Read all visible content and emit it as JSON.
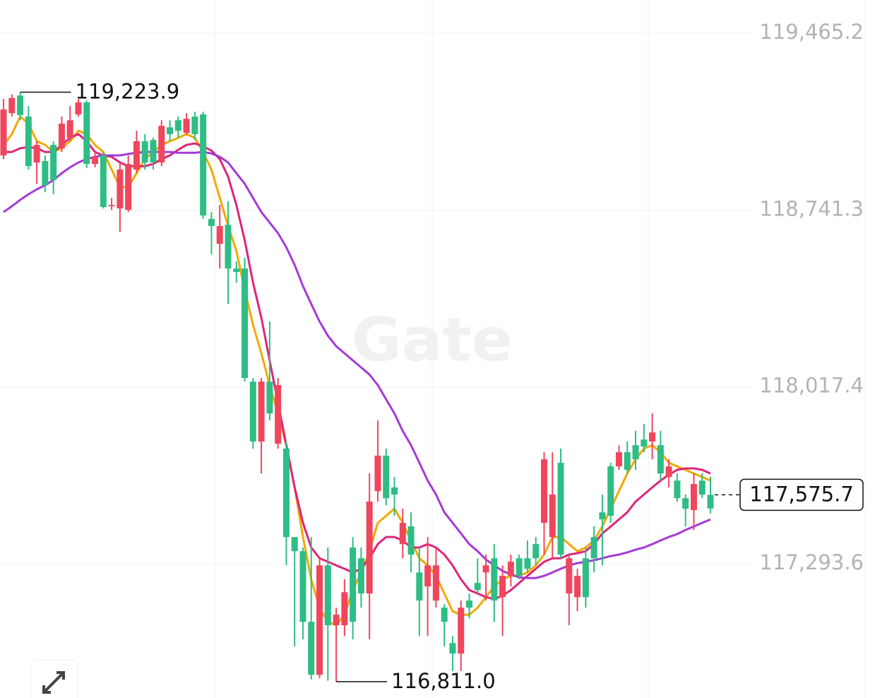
{
  "chart_data": {
    "type": "candlestick",
    "watermark": "Gate",
    "ylim": [
      116744.1,
      119601.1
    ],
    "yticks": [
      {
        "value": 119465.2,
        "label": "119,465.2"
      },
      {
        "value": 118741.3,
        "label": "118,741.3"
      },
      {
        "value": 118017.4,
        "label": "118,017.4"
      },
      {
        "value": 117293.6,
        "label": "117,293.6"
      }
    ],
    "grid": true,
    "up_color": "#2ebd85",
    "down_color": "#f0465d",
    "ohlc": [
      [
        119153,
        119196,
        118950,
        118965
      ],
      [
        119200,
        119215,
        119124,
        119138
      ],
      [
        119130,
        119223.9,
        119109,
        119210
      ],
      [
        118921,
        119167,
        118907,
        119124
      ],
      [
        119008,
        119023,
        118849,
        118936
      ],
      [
        118843,
        118965,
        118814,
        118942
      ],
      [
        118864,
        119023,
        118806,
        119008
      ],
      [
        119095,
        119124,
        118979,
        118994
      ],
      [
        119109,
        119167,
        119023,
        119037
      ],
      [
        119182,
        119196,
        119124,
        119133
      ],
      [
        118930,
        119190,
        118913,
        119182
      ],
      [
        118959,
        118979,
        118916,
        118930
      ],
      [
        118754,
        118979,
        118748,
        118965
      ],
      [
        118762,
        118791,
        118742,
        118757
      ],
      [
        118907,
        118936,
        118652,
        118748
      ],
      [
        118930,
        118965,
        118733,
        118742
      ],
      [
        119023,
        119066,
        118893,
        118907
      ],
      [
        118936,
        119052,
        118907,
        119023
      ],
      [
        118936,
        119037,
        118907,
        119028
      ],
      [
        119086,
        119109,
        118921,
        118936
      ],
      [
        119052,
        119109,
        119023,
        119080
      ],
      [
        119066,
        119124,
        119037,
        119109
      ],
      [
        119115,
        119138,
        119052,
        119057
      ],
      [
        119052,
        119144,
        119028,
        119124
      ],
      [
        118719,
        119144,
        118705,
        119133
      ],
      [
        118676,
        118733,
        118560,
        118705
      ],
      [
        118676,
        118762,
        118502,
        118603
      ],
      [
        118502,
        118777,
        118357,
        118681
      ],
      [
        118488,
        118531,
        118444,
        118502
      ],
      [
        118054,
        118546,
        118039,
        118502
      ],
      [
        117794,
        118054,
        117765,
        118039
      ],
      [
        118039,
        118054,
        117663,
        117794
      ],
      [
        117909,
        118285,
        117880,
        118039
      ],
      [
        118025,
        118054,
        117765,
        117785
      ],
      [
        117403,
        117794,
        117287,
        117765
      ],
      [
        117345,
        117389,
        116955,
        117403
      ],
      [
        117056,
        117360,
        116984,
        117345
      ],
      [
        116839,
        117403,
        116820,
        117056
      ],
      [
        117287,
        117316,
        116825,
        116839
      ],
      [
        117042,
        117360,
        116815,
        117287
      ],
      [
        117085,
        117114,
        116811.0,
        117042
      ],
      [
        117177,
        117230,
        116998,
        117042
      ],
      [
        117056,
        117403,
        116984,
        117360
      ],
      [
        117172,
        117360,
        117114,
        117316
      ],
      [
        117548,
        117663,
        116984,
        117172
      ],
      [
        117736,
        117880,
        117548,
        117591
      ],
      [
        117562,
        117765,
        117533,
        117736
      ],
      [
        117577,
        117649,
        117490,
        117606
      ],
      [
        117461,
        117519,
        117316,
        117374
      ],
      [
        117331,
        117504,
        117258,
        117447
      ],
      [
        117143,
        117360,
        116998,
        117258
      ],
      [
        117287,
        117403,
        116998,
        117201
      ],
      [
        117287,
        117360,
        117114,
        117143
      ],
      [
        117056,
        117128,
        116955,
        117114
      ],
      [
        116926,
        116998,
        116854,
        116969
      ],
      [
        117114,
        117143,
        116854,
        116926
      ],
      [
        117114,
        117172,
        117071,
        117143
      ],
      [
        117186,
        117316,
        117172,
        117215
      ],
      [
        117287,
        117331,
        117143,
        117258
      ],
      [
        117143,
        117374,
        117056,
        117316
      ],
      [
        117244,
        117287,
        116998,
        117157
      ],
      [
        117302,
        117331,
        117201,
        117244
      ],
      [
        117244,
        117331,
        117230,
        117316
      ],
      [
        117273,
        117389,
        117258,
        117316
      ],
      [
        117316,
        117403,
        117287,
        117374
      ],
      [
        117721,
        117750,
        117331,
        117461
      ],
      [
        117577,
        117750,
        117316,
        117403
      ],
      [
        117331,
        117765,
        117316,
        117707
      ],
      [
        117316,
        117331,
        117042,
        117172
      ],
      [
        117244,
        117273,
        117099,
        117157
      ],
      [
        117157,
        117360,
        117114,
        117316
      ],
      [
        117316,
        117447,
        117258,
        117403
      ],
      [
        117475,
        117577,
        117287,
        117504
      ],
      [
        117490,
        117707,
        117461,
        117692
      ],
      [
        117750,
        117779,
        117678,
        117692
      ],
      [
        117678,
        117794,
        117663,
        117750
      ],
      [
        117721,
        117837,
        117678,
        117779
      ],
      [
        117773,
        117866,
        117750,
        117802
      ],
      [
        117831,
        117909,
        117721,
        117794
      ],
      [
        117663,
        117837,
        117634,
        117779
      ],
      [
        117692,
        117721,
        117606,
        117649
      ],
      [
        117562,
        117663,
        117548,
        117634
      ],
      [
        117519,
        117577,
        117446,
        117562
      ],
      [
        117620,
        117663,
        117432,
        117513
      ],
      [
        117577,
        117663,
        117562,
        117634
      ],
      [
        117520,
        117650,
        117500,
        117575.7
      ]
    ],
    "series": [
      {
        "color": "#f2a900",
        "values": [
          119008,
          119052,
          119124,
          119095,
          119023,
          119008,
          118979,
          118994,
          119023,
          119066,
          119052,
          119008,
          118979,
          118907,
          118835,
          118835,
          118892,
          118950,
          118979,
          119008,
          119023,
          119037,
          119052,
          119037,
          118979,
          118907,
          118791,
          118676,
          118574,
          118415,
          118271,
          118155,
          118025,
          117909,
          117779,
          117606,
          117403,
          117230,
          117114,
          117056,
          117042,
          117085,
          117186,
          117258,
          117345,
          117461,
          117490,
          117519,
          117461,
          117389,
          117316,
          117287,
          117244,
          117172,
          117099,
          117085,
          117085,
          117114,
          117157,
          117201,
          117230,
          117244,
          117244,
          117258,
          117287,
          117331,
          117403,
          117403,
          117374,
          117345,
          117360,
          117389,
          117446,
          117519,
          117591,
          117663,
          117721,
          117765,
          117779,
          117750,
          117707,
          117692,
          117678,
          117663,
          117649,
          117634
        ]
      },
      {
        "color": "#e0247a",
        "values": [
          118979,
          118979,
          118994,
          118999,
          118994,
          118979,
          118979,
          119008,
          119037,
          119052,
          119023,
          118979,
          118965,
          118959,
          118936,
          118921,
          118921,
          118921,
          118930,
          118950,
          118965,
          118988,
          119008,
          119014,
          119002,
          118985,
          118950,
          118878,
          118762,
          118618,
          118444,
          118300,
          118126,
          117953,
          117779,
          117606,
          117461,
          117360,
          117316,
          117302,
          117287,
          117273,
          117258,
          117273,
          117316,
          117374,
          117403,
          117403,
          117389,
          117360,
          117360,
          117374,
          117360,
          117331,
          117287,
          117230,
          117186,
          117172,
          117157,
          117149,
          117163,
          117186,
          117215,
          117244,
          117273,
          117302,
          117316,
          117316,
          117331,
          117337,
          117345,
          117374,
          117418,
          117446,
          117475,
          117504,
          117548,
          117577,
          117606,
          117634,
          117658,
          117678,
          117684,
          117684,
          117678,
          117663
        ]
      },
      {
        "color": "#a43ad6",
        "values": [
          118733,
          118757,
          118783,
          118806,
          118826,
          118843,
          118864,
          118892,
          118916,
          118936,
          118950,
          118959,
          118965,
          118965,
          118965,
          118971,
          118976,
          118979,
          118979,
          118979,
          118979,
          118976,
          118976,
          118976,
          118979,
          118973,
          118959,
          118936,
          118892,
          118849,
          118791,
          118733,
          118690,
          118647,
          118589,
          118517,
          118430,
          118357,
          118285,
          118227,
          118184,
          118155,
          118126,
          118097,
          118068,
          118025,
          117967,
          117909,
          117837,
          117779,
          117707,
          117634,
          117577,
          117504,
          117461,
          117418,
          117374,
          117345,
          117311,
          117287,
          117264,
          117250,
          117238,
          117235,
          117235,
          117244,
          117258,
          117273,
          117287,
          117296,
          117302,
          117308,
          117316,
          117325,
          117331,
          117340,
          117351,
          117360,
          117374,
          117389,
          117403,
          117415,
          117432,
          117446,
          117461,
          117475
        ]
      }
    ],
    "annotations": [
      {
        "value": 119223.9,
        "label": "119,223.9"
      },
      {
        "value": 116811.0,
        "label": "116,811.0"
      }
    ],
    "last_price": {
      "value": 117575.7,
      "label": "117,575.7"
    }
  }
}
